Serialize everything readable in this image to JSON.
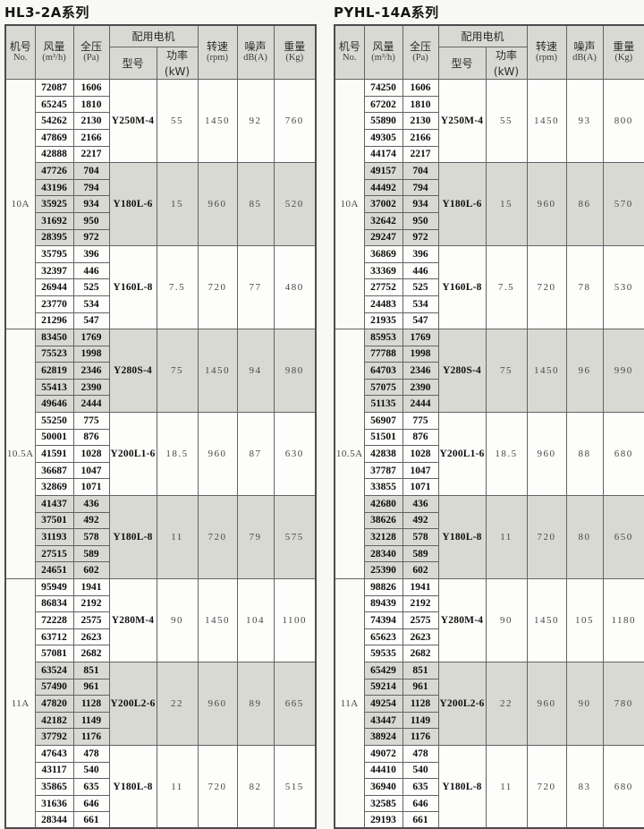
{
  "colors": {
    "page_background": "#f8f8f4",
    "shaded_cell": "#d9d9d4",
    "border": "#636363",
    "number_text": "#0c0c0c",
    "value_text": "#474747"
  },
  "header": {
    "no": {
      "line1": "机号",
      "line2": "No."
    },
    "airflow": {
      "line1": "风量",
      "line2": "(m³/h)"
    },
    "pressure": {
      "line1": "全压",
      "line2": "(Pa)"
    },
    "motor_group": "配用电机",
    "model": "型号",
    "power": "功率(kW)",
    "speed": {
      "line1": "转速",
      "line2": "(rpm)"
    },
    "noise": {
      "line1": "噪声",
      "line2": "dB(A)"
    },
    "weight": {
      "line1": "重量",
      "line2": "(Kg)"
    }
  },
  "tables": [
    {
      "title": "HL3-2A系列",
      "sections": [
        {
          "machine": "10A",
          "groups": [
            {
              "shaded": false,
              "model": "Y250M-4",
              "power": "55",
              "rpm": "1450",
              "noise": "92",
              "weight": "760",
              "rows": [
                [
                  "72087",
                  "1606"
                ],
                [
                  "65245",
                  "1810"
                ],
                [
                  "54262",
                  "2130"
                ],
                [
                  "47869",
                  "2166"
                ],
                [
                  "42888",
                  "2217"
                ]
              ]
            },
            {
              "shaded": true,
              "model": "Y180L-6",
              "power": "15",
              "rpm": "960",
              "noise": "85",
              "weight": "520",
              "rows": [
                [
                  "47726",
                  "704"
                ],
                [
                  "43196",
                  "794"
                ],
                [
                  "35925",
                  "934"
                ],
                [
                  "31692",
                  "950"
                ],
                [
                  "28395",
                  "972"
                ]
              ]
            },
            {
              "shaded": false,
              "model": "Y160L-8",
              "power": "7.5",
              "rpm": "720",
              "noise": "77",
              "weight": "480",
              "rows": [
                [
                  "35795",
                  "396"
                ],
                [
                  "32397",
                  "446"
                ],
                [
                  "26944",
                  "525"
                ],
                [
                  "23770",
                  "534"
                ],
                [
                  "21296",
                  "547"
                ]
              ]
            }
          ]
        },
        {
          "machine": "10.5A",
          "groups": [
            {
              "shaded": true,
              "model": "Y280S-4",
              "power": "75",
              "rpm": "1450",
              "noise": "94",
              "weight": "980",
              "rows": [
                [
                  "83450",
                  "1769"
                ],
                [
                  "75523",
                  "1998"
                ],
                [
                  "62819",
                  "2346"
                ],
                [
                  "55413",
                  "2390"
                ],
                [
                  "49646",
                  "2444"
                ]
              ]
            },
            {
              "shaded": false,
              "model": "Y200L1-6",
              "power": "18.5",
              "rpm": "960",
              "noise": "87",
              "weight": "630",
              "rows": [
                [
                  "55250",
                  "775"
                ],
                [
                  "50001",
                  "876"
                ],
                [
                  "41591",
                  "1028"
                ],
                [
                  "36687",
                  "1047"
                ],
                [
                  "32869",
                  "1071"
                ]
              ]
            },
            {
              "shaded": true,
              "model": "Y180L-8",
              "power": "11",
              "rpm": "720",
              "noise": "79",
              "weight": "575",
              "rows": [
                [
                  "41437",
                  "436"
                ],
                [
                  "37501",
                  "492"
                ],
                [
                  "31193",
                  "578"
                ],
                [
                  "27515",
                  "589"
                ],
                [
                  "24651",
                  "602"
                ]
              ]
            }
          ]
        },
        {
          "machine": "11A",
          "groups": [
            {
              "shaded": false,
              "model": "Y280M-4",
              "power": "90",
              "rpm": "1450",
              "noise": "104",
              "weight": "1100",
              "rows": [
                [
                  "95949",
                  "1941"
                ],
                [
                  "86834",
                  "2192"
                ],
                [
                  "72228",
                  "2575"
                ],
                [
                  "63712",
                  "2623"
                ],
                [
                  "57081",
                  "2682"
                ]
              ]
            },
            {
              "shaded": true,
              "model": "Y200L2-6",
              "power": "22",
              "rpm": "960",
              "noise": "89",
              "weight": "665",
              "rows": [
                [
                  "63524",
                  "851"
                ],
                [
                  "57490",
                  "961"
                ],
                [
                  "47820",
                  "1128"
                ],
                [
                  "42182",
                  "1149"
                ],
                [
                  "37792",
                  "1176"
                ]
              ]
            },
            {
              "shaded": false,
              "model": "Y180L-8",
              "power": "11",
              "rpm": "720",
              "noise": "82",
              "weight": "515",
              "rows": [
                [
                  "47643",
                  "478"
                ],
                [
                  "43117",
                  "540"
                ],
                [
                  "35865",
                  "635"
                ],
                [
                  "31636",
                  "646"
                ],
                [
                  "28344",
                  "661"
                ]
              ]
            }
          ]
        }
      ]
    },
    {
      "title": "PYHL-14A系列",
      "sections": [
        {
          "machine": "10A",
          "groups": [
            {
              "shaded": false,
              "model": "Y250M-4",
              "power": "55",
              "rpm": "1450",
              "noise": "93",
              "weight": "800",
              "rows": [
                [
                  "74250",
                  "1606"
                ],
                [
                  "67202",
                  "1810"
                ],
                [
                  "55890",
                  "2130"
                ],
                [
                  "49305",
                  "2166"
                ],
                [
                  "44174",
                  "2217"
                ]
              ]
            },
            {
              "shaded": true,
              "model": "Y180L-6",
              "power": "15",
              "rpm": "960",
              "noise": "86",
              "weight": "570",
              "rows": [
                [
                  "49157",
                  "704"
                ],
                [
                  "44492",
                  "794"
                ],
                [
                  "37002",
                  "934"
                ],
                [
                  "32642",
                  "950"
                ],
                [
                  "29247",
                  "972"
                ]
              ]
            },
            {
              "shaded": false,
              "model": "Y160L-8",
              "power": "7.5",
              "rpm": "720",
              "noise": "78",
              "weight": "530",
              "rows": [
                [
                  "36869",
                  "396"
                ],
                [
                  "33369",
                  "446"
                ],
                [
                  "27752",
                  "525"
                ],
                [
                  "24483",
                  "534"
                ],
                [
                  "21935",
                  "547"
                ]
              ]
            }
          ]
        },
        {
          "machine": "10.5A",
          "groups": [
            {
              "shaded": true,
              "model": "Y280S-4",
              "power": "75",
              "rpm": "1450",
              "noise": "96",
              "weight": "990",
              "rows": [
                [
                  "85953",
                  "1769"
                ],
                [
                  "77788",
                  "1998"
                ],
                [
                  "64703",
                  "2346"
                ],
                [
                  "57075",
                  "2390"
                ],
                [
                  "51135",
                  "2444"
                ]
              ]
            },
            {
              "shaded": false,
              "model": "Y200L1-6",
              "power": "18.5",
              "rpm": "960",
              "noise": "88",
              "weight": "680",
              "rows": [
                [
                  "56907",
                  "775"
                ],
                [
                  "51501",
                  "876"
                ],
                [
                  "42838",
                  "1028"
                ],
                [
                  "37787",
                  "1047"
                ],
                [
                  "33855",
                  "1071"
                ]
              ]
            },
            {
              "shaded": true,
              "model": "Y180L-8",
              "power": "11",
              "rpm": "720",
              "noise": "80",
              "weight": "650",
              "rows": [
                [
                  "42680",
                  "436"
                ],
                [
                  "38626",
                  "492"
                ],
                [
                  "32128",
                  "578"
                ],
                [
                  "28340",
                  "589"
                ],
                [
                  "25390",
                  "602"
                ]
              ]
            }
          ]
        },
        {
          "machine": "11A",
          "groups": [
            {
              "shaded": false,
              "model": "Y280M-4",
              "power": "90",
              "rpm": "1450",
              "noise": "105",
              "weight": "1180",
              "rows": [
                [
                  "98826",
                  "1941"
                ],
                [
                  "89439",
                  "2192"
                ],
                [
                  "74394",
                  "2575"
                ],
                [
                  "65623",
                  "2623"
                ],
                [
                  "59535",
                  "2682"
                ]
              ]
            },
            {
              "shaded": true,
              "model": "Y200L2-6",
              "power": "22",
              "rpm": "960",
              "noise": "90",
              "weight": "780",
              "rows": [
                [
                  "65429",
                  "851"
                ],
                [
                  "59214",
                  "961"
                ],
                [
                  "49254",
                  "1128"
                ],
                [
                  "43447",
                  "1149"
                ],
                [
                  "38924",
                  "1176"
                ]
              ]
            },
            {
              "shaded": false,
              "model": "Y180L-8",
              "power": "11",
              "rpm": "720",
              "noise": "83",
              "weight": "680",
              "rows": [
                [
                  "49072",
                  "478"
                ],
                [
                  "44410",
                  "540"
                ],
                [
                  "36940",
                  "635"
                ],
                [
                  "32585",
                  "646"
                ],
                [
                  "29193",
                  "661"
                ]
              ]
            }
          ]
        }
      ]
    }
  ]
}
